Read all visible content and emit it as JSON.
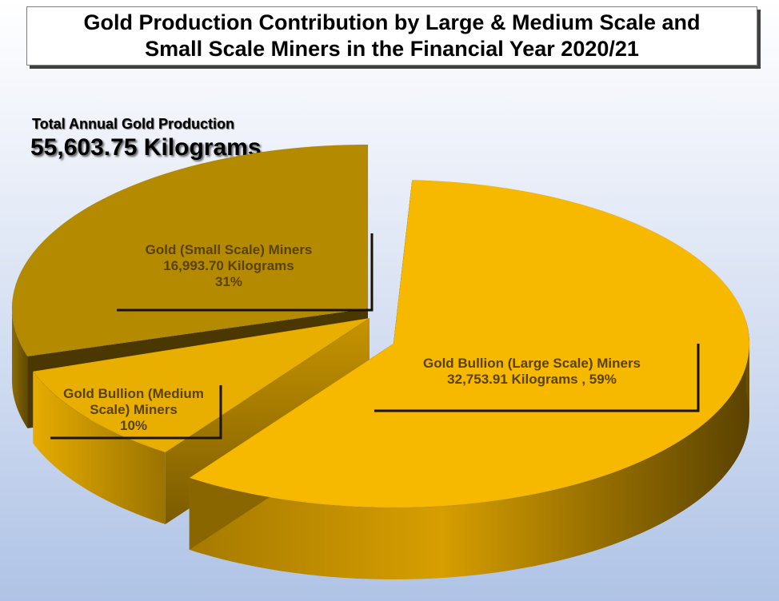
{
  "title": "Gold Production Contribution by Large & Medium Scale and\nSmall Scale Miners in the Financial Year 2020/21",
  "total": {
    "label": "Total Annual Gold Production",
    "value": "55,603.75 Kilograms"
  },
  "chart_data": {
    "type": "pie",
    "style": "3d-exploded",
    "total_kg": 55603.75,
    "slices": [
      {
        "name": "Gold Bullion (Large Scale) Miners",
        "value_kg": 32753.91,
        "percent": 59,
        "label_lines": [
          "Gold Bullion (Large Scale) Miners",
          "32,753.91 Kilograms , 59%"
        ],
        "color": "#f7b800"
      },
      {
        "name": "Gold Bullion (Medium Scale) Miners",
        "percent": 10,
        "label_lines": [
          "Gold Bullion (Medium",
          "Scale) Miners",
          "10%"
        ],
        "color": "#e8ae00"
      },
      {
        "name": "Gold (Small Scale) Miners",
        "value_kg": 16993.7,
        "percent": 31,
        "label_lines": [
          "Gold (Small Scale) Miners",
          "16,993.70 Kilograms",
          "31%"
        ],
        "color": "#b48a00"
      }
    ],
    "label_color": "#5a4200"
  }
}
